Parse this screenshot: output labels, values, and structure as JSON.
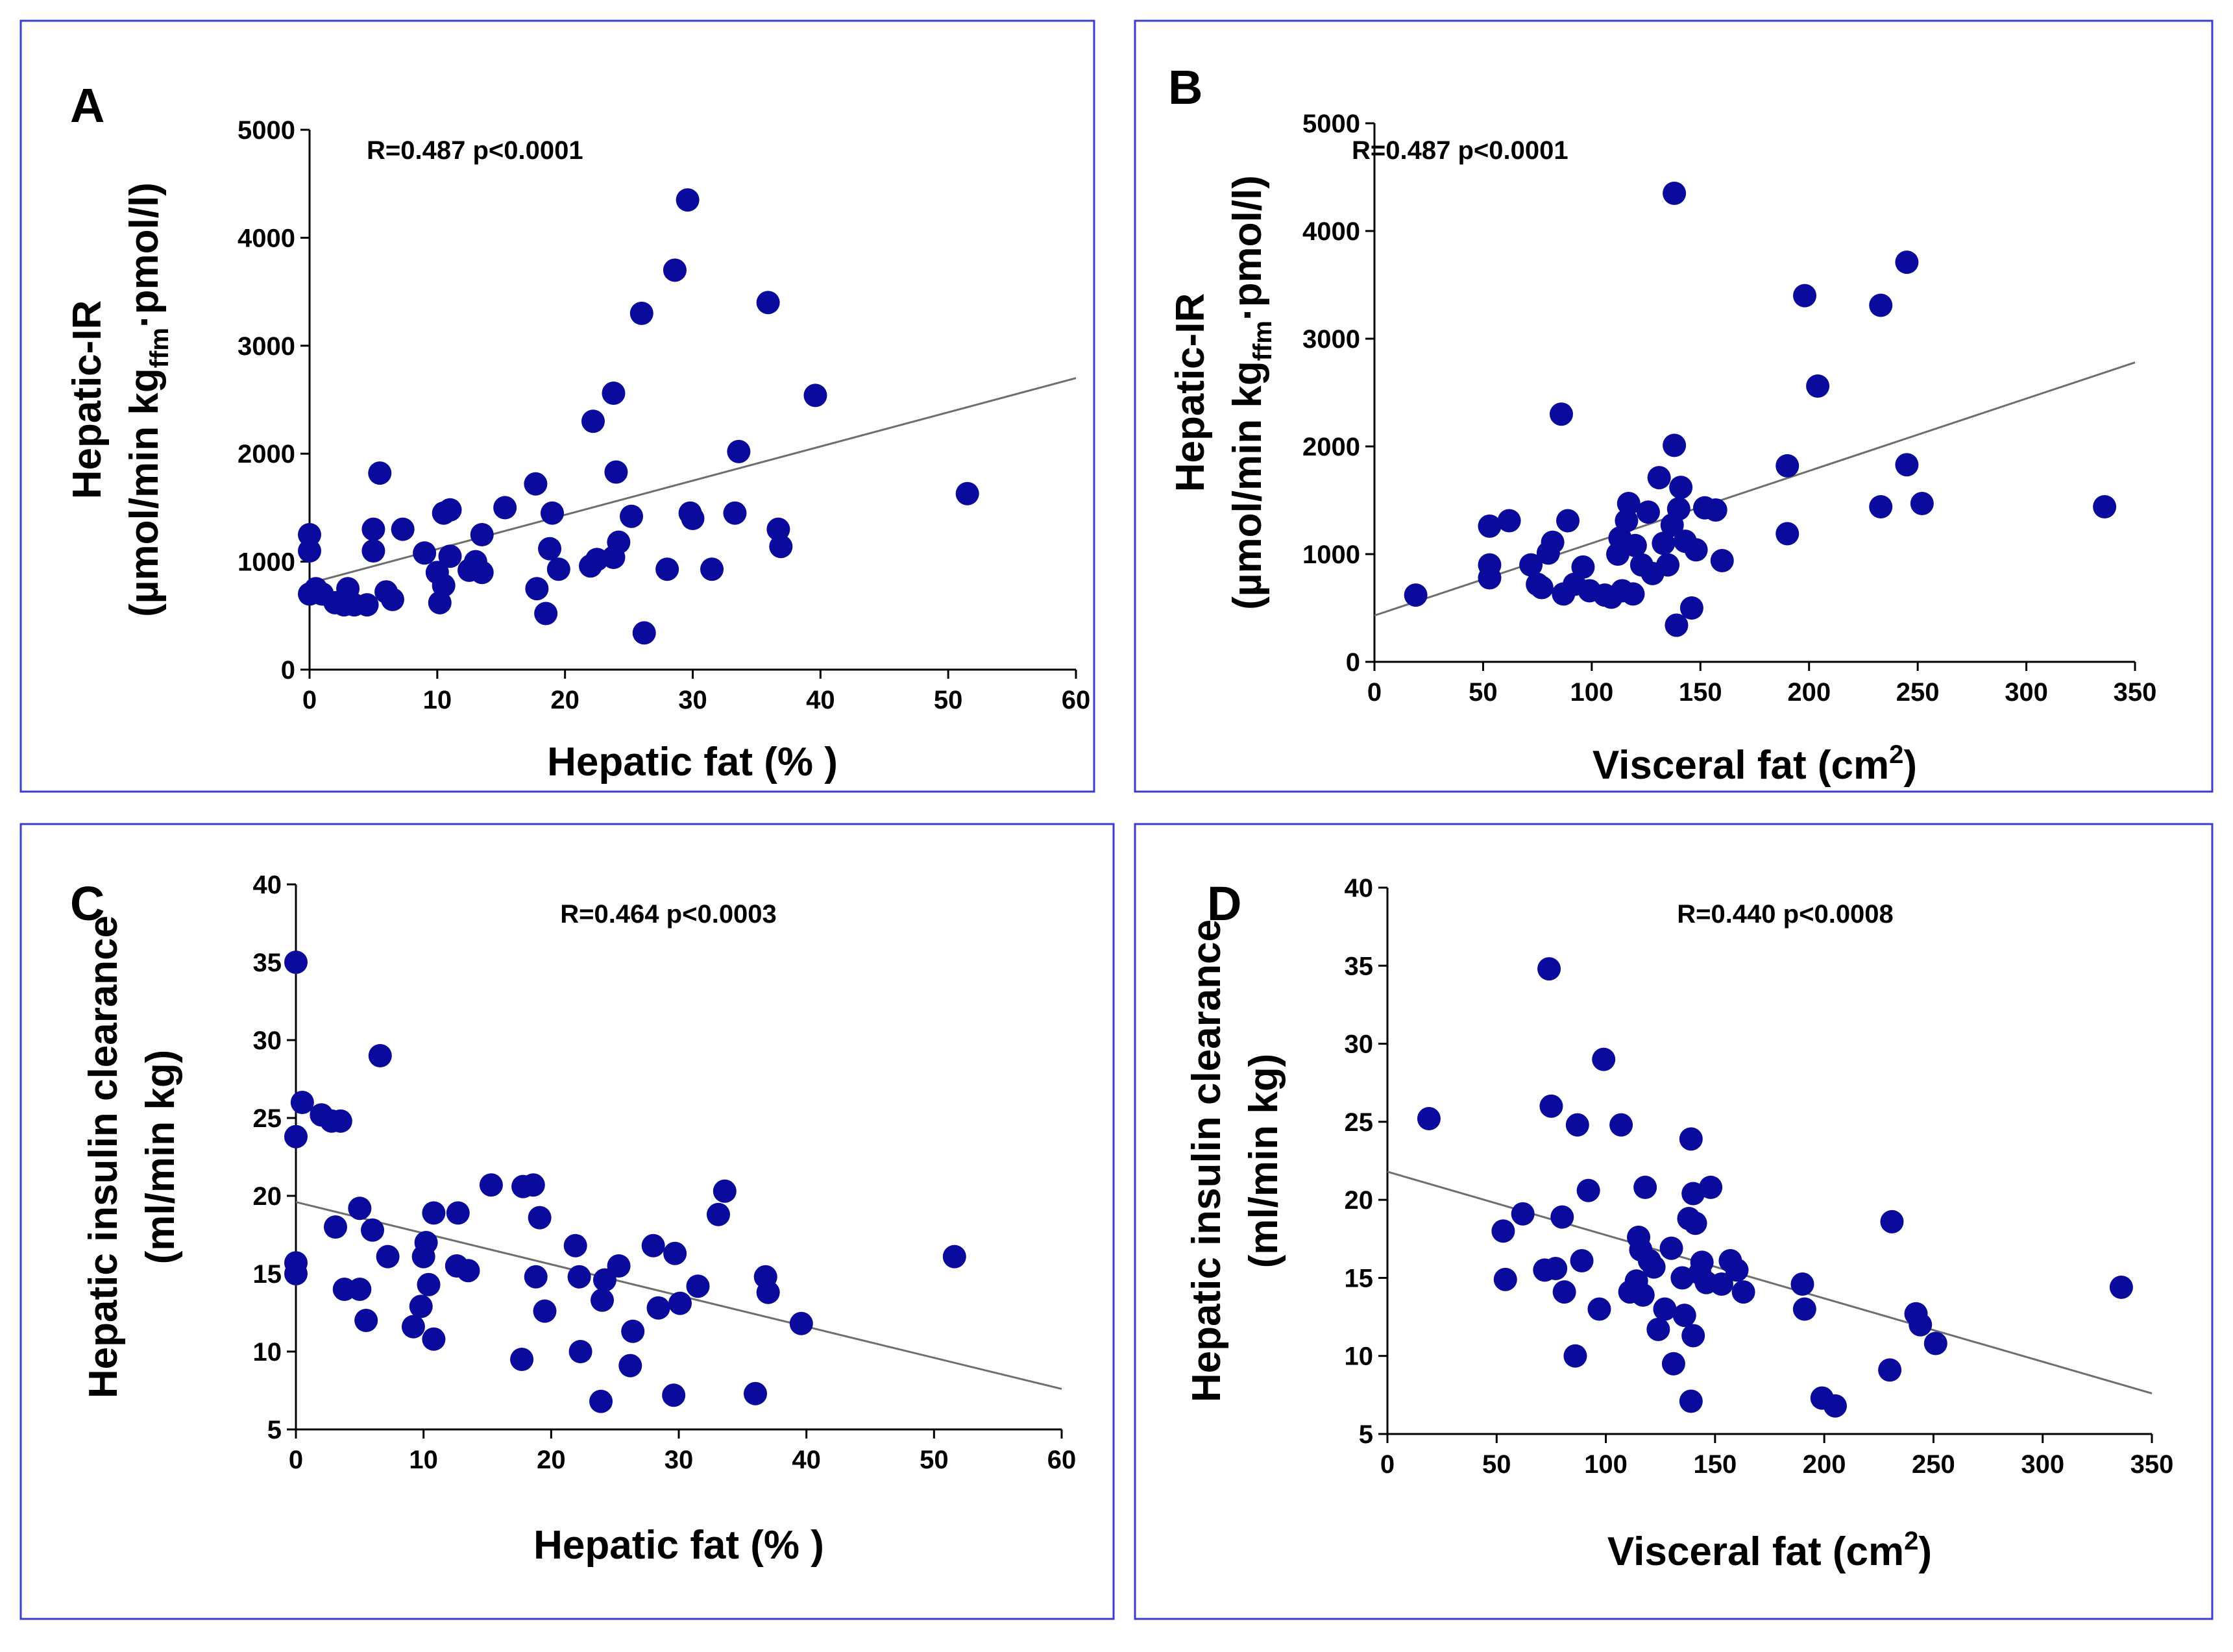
{
  "colors": {
    "panel_border": "#3c3ccc",
    "marker": "#0a0a9c",
    "regression_line": "#6e6e6e",
    "axis": "#000000",
    "text": "#000000"
  },
  "chart_data": [
    {
      "panel": "A",
      "type": "scatter",
      "stat_label": "R=0.487 p<0.0001",
      "xlabel": "Hepatic fat (% )",
      "ylabel_line1": "Hepatic-IR",
      "ylabel_line2": {
        "pre": "(µmol/min kg",
        "sub": "ffm",
        "post": "·pmol/l)"
      },
      "xlim": [
        0,
        60
      ],
      "ylim": [
        0,
        5000
      ],
      "xticks": [
        "0",
        "10",
        "20",
        "30",
        "40",
        "50",
        "60"
      ],
      "yticks": [
        "0",
        "1000",
        "2000",
        "3000",
        "4000",
        "5000"
      ],
      "regression": {
        "x": [
          0,
          60
        ],
        "y": [
          800,
          2700
        ]
      },
      "points": [
        {
          "x": 0.0,
          "y": 1250
        },
        {
          "x": 0.0,
          "y": 1100
        },
        {
          "x": 0.0,
          "y": 700
        },
        {
          "x": 0.5,
          "y": 750
        },
        {
          "x": 1.0,
          "y": 700
        },
        {
          "x": 2.0,
          "y": 620
        },
        {
          "x": 2.7,
          "y": 600
        },
        {
          "x": 3.0,
          "y": 750
        },
        {
          "x": 3.5,
          "y": 600
        },
        {
          "x": 4.5,
          "y": 600
        },
        {
          "x": 5.0,
          "y": 1100
        },
        {
          "x": 5.0,
          "y": 1300
        },
        {
          "x": 5.5,
          "y": 1820
        },
        {
          "x": 6.0,
          "y": 720
        },
        {
          "x": 6.5,
          "y": 650
        },
        {
          "x": 7.3,
          "y": 1300
        },
        {
          "x": 9.0,
          "y": 1080
        },
        {
          "x": 10.0,
          "y": 900
        },
        {
          "x": 10.2,
          "y": 620
        },
        {
          "x": 10.5,
          "y": 780
        },
        {
          "x": 10.5,
          "y": 1450
        },
        {
          "x": 11.0,
          "y": 1050
        },
        {
          "x": 11.0,
          "y": 1480
        },
        {
          "x": 12.5,
          "y": 920
        },
        {
          "x": 13.0,
          "y": 1000
        },
        {
          "x": 13.5,
          "y": 1250
        },
        {
          "x": 13.5,
          "y": 900
        },
        {
          "x": 15.3,
          "y": 1500
        },
        {
          "x": 17.7,
          "y": 1720
        },
        {
          "x": 17.8,
          "y": 750
        },
        {
          "x": 18.5,
          "y": 520
        },
        {
          "x": 18.8,
          "y": 1120
        },
        {
          "x": 19.0,
          "y": 1450
        },
        {
          "x": 19.5,
          "y": 930
        },
        {
          "x": 22.0,
          "y": 960
        },
        {
          "x": 22.2,
          "y": 2300
        },
        {
          "x": 22.5,
          "y": 1020
        },
        {
          "x": 23.8,
          "y": 1040
        },
        {
          "x": 23.8,
          "y": 2560
        },
        {
          "x": 24.0,
          "y": 1830
        },
        {
          "x": 24.2,
          "y": 1180
        },
        {
          "x": 25.2,
          "y": 1420
        },
        {
          "x": 26.0,
          "y": 3300
        },
        {
          "x": 26.2,
          "y": 340
        },
        {
          "x": 28.0,
          "y": 930
        },
        {
          "x": 28.6,
          "y": 3700
        },
        {
          "x": 29.6,
          "y": 4350
        },
        {
          "x": 29.8,
          "y": 1450
        },
        {
          "x": 30.0,
          "y": 1400
        },
        {
          "x": 31.5,
          "y": 930
        },
        {
          "x": 33.3,
          "y": 1450
        },
        {
          "x": 33.6,
          "y": 2020
        },
        {
          "x": 35.9,
          "y": 3400
        },
        {
          "x": 36.7,
          "y": 1300
        },
        {
          "x": 36.9,
          "y": 1140
        },
        {
          "x": 39.6,
          "y": 2540
        },
        {
          "x": 51.5,
          "y": 1630
        }
      ]
    },
    {
      "panel": "B",
      "type": "scatter",
      "stat_label": "R=0.487 p<0.0001",
      "xlabel": "Visceral fat (cm",
      "xlabel_sup": "2",
      "xlabel_end": ")",
      "ylabel_line1": "Hepatic-IR",
      "ylabel_line2": {
        "pre": "(µmol/min kg",
        "sub": "ffm",
        "post": "·pmol/l)"
      },
      "xlim": [
        0,
        350
      ],
      "ylim": [
        0,
        5000
      ],
      "xticks": [
        "0",
        "50",
        "100",
        "150",
        "200",
        "250",
        "300",
        "350"
      ],
      "yticks": [
        "0",
        "1000",
        "2000",
        "3000",
        "4000",
        "5000"
      ],
      "regression": {
        "x": [
          0,
          350
        ],
        "y": [
          430,
          2780
        ]
      },
      "points": [
        {
          "x": 19,
          "y": 620
        },
        {
          "x": 53,
          "y": 1260
        },
        {
          "x": 53,
          "y": 900
        },
        {
          "x": 53,
          "y": 780
        },
        {
          "x": 62,
          "y": 1310
        },
        {
          "x": 72,
          "y": 900
        },
        {
          "x": 75,
          "y": 720
        },
        {
          "x": 77,
          "y": 690
        },
        {
          "x": 80,
          "y": 1010
        },
        {
          "x": 82,
          "y": 1110
        },
        {
          "x": 86,
          "y": 2300
        },
        {
          "x": 87,
          "y": 630
        },
        {
          "x": 89,
          "y": 1310
        },
        {
          "x": 92,
          "y": 720
        },
        {
          "x": 96,
          "y": 880
        },
        {
          "x": 99,
          "y": 660
        },
        {
          "x": 106,
          "y": 620
        },
        {
          "x": 109,
          "y": 600
        },
        {
          "x": 112,
          "y": 1000
        },
        {
          "x": 113,
          "y": 1150
        },
        {
          "x": 114,
          "y": 660
        },
        {
          "x": 116,
          "y": 1310
        },
        {
          "x": 117,
          "y": 1470
        },
        {
          "x": 119,
          "y": 630
        },
        {
          "x": 120,
          "y": 1080
        },
        {
          "x": 123,
          "y": 900
        },
        {
          "x": 126,
          "y": 1390
        },
        {
          "x": 128,
          "y": 820
        },
        {
          "x": 131,
          "y": 1710
        },
        {
          "x": 133,
          "y": 1100
        },
        {
          "x": 135,
          "y": 900
        },
        {
          "x": 137,
          "y": 1270
        },
        {
          "x": 138,
          "y": 2010
        },
        {
          "x": 138,
          "y": 4350
        },
        {
          "x": 139,
          "y": 340
        },
        {
          "x": 140,
          "y": 1420
        },
        {
          "x": 141,
          "y": 1620
        },
        {
          "x": 143,
          "y": 1120
        },
        {
          "x": 146,
          "y": 500
        },
        {
          "x": 148,
          "y": 1040
        },
        {
          "x": 152,
          "y": 1430
        },
        {
          "x": 157,
          "y": 1410
        },
        {
          "x": 160,
          "y": 940
        },
        {
          "x": 190,
          "y": 1820
        },
        {
          "x": 190,
          "y": 1190
        },
        {
          "x": 198,
          "y": 3400
        },
        {
          "x": 204,
          "y": 2560
        },
        {
          "x": 233,
          "y": 3310
        },
        {
          "x": 233,
          "y": 1440
        },
        {
          "x": 245,
          "y": 3710
        },
        {
          "x": 245,
          "y": 1830
        },
        {
          "x": 252,
          "y": 1470
        },
        {
          "x": 336,
          "y": 1440
        }
      ]
    },
    {
      "panel": "C",
      "type": "scatter",
      "stat_label": "R=0.464 p<0.0003",
      "xlabel": "Hepatic fat (% )",
      "ylabel_line1": "Hepatic insulin clearance",
      "ylabel_line2_text": "(ml/min kg)",
      "xlim": [
        0,
        60
      ],
      "ylim": [
        5,
        40
      ],
      "xticks": [
        "0",
        "10",
        "20",
        "30",
        "40",
        "50",
        "60"
      ],
      "yticks": [
        "5",
        "10",
        "15",
        "20",
        "25",
        "30",
        "35",
        "40"
      ],
      "regression": {
        "x": [
          0,
          60
        ],
        "y": [
          19.6,
          7.6
        ]
      },
      "points": [
        {
          "x": 0.0,
          "y": 35.0
        },
        {
          "x": 0.0,
          "y": 23.8
        },
        {
          "x": 0.0,
          "y": 15.7
        },
        {
          "x": 0.0,
          "y": 15.0
        },
        {
          "x": 0.5,
          "y": 26.0
        },
        {
          "x": 2.0,
          "y": 25.2
        },
        {
          "x": 2.8,
          "y": 24.8
        },
        {
          "x": 3.1,
          "y": 18.0
        },
        {
          "x": 3.5,
          "y": 24.8
        },
        {
          "x": 3.8,
          "y": 14.0
        },
        {
          "x": 5.0,
          "y": 14.0
        },
        {
          "x": 5.0,
          "y": 19.2
        },
        {
          "x": 5.5,
          "y": 12.0
        },
        {
          "x": 6.0,
          "y": 17.8
        },
        {
          "x": 6.6,
          "y": 29.0
        },
        {
          "x": 7.2,
          "y": 16.1
        },
        {
          "x": 9.2,
          "y": 11.6
        },
        {
          "x": 9.8,
          "y": 12.9
        },
        {
          "x": 10.0,
          "y": 16.1
        },
        {
          "x": 10.2,
          "y": 17.0
        },
        {
          "x": 10.4,
          "y": 14.3
        },
        {
          "x": 10.8,
          "y": 18.9
        },
        {
          "x": 10.8,
          "y": 10.8
        },
        {
          "x": 12.6,
          "y": 15.5
        },
        {
          "x": 12.7,
          "y": 18.9
        },
        {
          "x": 13.5,
          "y": 15.2
        },
        {
          "x": 15.3,
          "y": 20.7
        },
        {
          "x": 17.7,
          "y": 9.5
        },
        {
          "x": 17.8,
          "y": 20.6
        },
        {
          "x": 18.6,
          "y": 20.7
        },
        {
          "x": 18.8,
          "y": 14.8
        },
        {
          "x": 19.1,
          "y": 18.6
        },
        {
          "x": 19.5,
          "y": 12.6
        },
        {
          "x": 21.9,
          "y": 16.8
        },
        {
          "x": 22.2,
          "y": 14.8
        },
        {
          "x": 22.3,
          "y": 10.0
        },
        {
          "x": 23.9,
          "y": 6.8
        },
        {
          "x": 24.0,
          "y": 13.3
        },
        {
          "x": 24.2,
          "y": 14.6
        },
        {
          "x": 25.3,
          "y": 15.5
        },
        {
          "x": 26.2,
          "y": 9.1
        },
        {
          "x": 26.4,
          "y": 11.3
        },
        {
          "x": 28.0,
          "y": 16.8
        },
        {
          "x": 28.4,
          "y": 12.8
        },
        {
          "x": 29.6,
          "y": 7.2
        },
        {
          "x": 29.7,
          "y": 16.3
        },
        {
          "x": 30.1,
          "y": 13.1
        },
        {
          "x": 31.5,
          "y": 14.2
        },
        {
          "x": 33.1,
          "y": 18.8
        },
        {
          "x": 33.6,
          "y": 20.3
        },
        {
          "x": 36.0,
          "y": 7.3
        },
        {
          "x": 36.8,
          "y": 14.8
        },
        {
          "x": 37.0,
          "y": 13.8
        },
        {
          "x": 39.6,
          "y": 11.8
        },
        {
          "x": 51.6,
          "y": 16.1
        }
      ]
    },
    {
      "panel": "D",
      "type": "scatter",
      "stat_label": "R=0.440 p<0.0008",
      "xlabel": "Visceral fat (cm",
      "xlabel_sup": "2",
      "xlabel_end": ")",
      "ylabel_line1": "Hepatic insulin clearance",
      "ylabel_line2_text": "(ml/min kg)",
      "xlim": [
        0,
        350
      ],
      "ylim": [
        5,
        40
      ],
      "xticks": [
        "0",
        "50",
        "100",
        "150",
        "200",
        "250",
        "300",
        "350"
      ],
      "yticks": [
        "5",
        "10",
        "15",
        "20",
        "25",
        "30",
        "35",
        "40"
      ],
      "regression": {
        "x": [
          0,
          350
        ],
        "y": [
          21.8,
          7.6
        ]
      },
      "points": [
        {
          "x": 19,
          "y": 25.2
        },
        {
          "x": 53,
          "y": 18.0
        },
        {
          "x": 54,
          "y": 14.9
        },
        {
          "x": 62,
          "y": 19.1
        },
        {
          "x": 72,
          "y": 15.5
        },
        {
          "x": 74,
          "y": 34.8
        },
        {
          "x": 75,
          "y": 26.0
        },
        {
          "x": 77,
          "y": 15.6
        },
        {
          "x": 80,
          "y": 18.9
        },
        {
          "x": 81,
          "y": 14.1
        },
        {
          "x": 86,
          "y": 10.0
        },
        {
          "x": 87,
          "y": 24.8
        },
        {
          "x": 89,
          "y": 16.1
        },
        {
          "x": 92,
          "y": 20.6
        },
        {
          "x": 97,
          "y": 13.0
        },
        {
          "x": 99,
          "y": 29.0
        },
        {
          "x": 107,
          "y": 24.8
        },
        {
          "x": 111,
          "y": 14.1
        },
        {
          "x": 114,
          "y": 14.8
        },
        {
          "x": 115,
          "y": 17.6
        },
        {
          "x": 116,
          "y": 16.8
        },
        {
          "x": 117,
          "y": 13.9
        },
        {
          "x": 118,
          "y": 20.8
        },
        {
          "x": 120,
          "y": 16.1
        },
        {
          "x": 122,
          "y": 15.7
        },
        {
          "x": 124,
          "y": 11.7
        },
        {
          "x": 127,
          "y": 13.0
        },
        {
          "x": 130,
          "y": 16.9
        },
        {
          "x": 131,
          "y": 9.5
        },
        {
          "x": 135,
          "y": 15.0
        },
        {
          "x": 136,
          "y": 12.6
        },
        {
          "x": 138,
          "y": 18.8
        },
        {
          "x": 139,
          "y": 23.9
        },
        {
          "x": 139,
          "y": 7.1
        },
        {
          "x": 140,
          "y": 20.4
        },
        {
          "x": 140,
          "y": 11.3
        },
        {
          "x": 141,
          "y": 18.5
        },
        {
          "x": 143,
          "y": 15.3
        },
        {
          "x": 144,
          "y": 16.0
        },
        {
          "x": 146,
          "y": 14.7
        },
        {
          "x": 148,
          "y": 20.8
        },
        {
          "x": 153,
          "y": 14.6
        },
        {
          "x": 157,
          "y": 16.1
        },
        {
          "x": 160,
          "y": 15.5
        },
        {
          "x": 163,
          "y": 14.1
        },
        {
          "x": 190,
          "y": 14.6
        },
        {
          "x": 191,
          "y": 13.0
        },
        {
          "x": 199,
          "y": 7.3
        },
        {
          "x": 205,
          "y": 6.8
        },
        {
          "x": 230,
          "y": 9.1
        },
        {
          "x": 231,
          "y": 18.6
        },
        {
          "x": 242,
          "y": 12.7
        },
        {
          "x": 244,
          "y": 12.0
        },
        {
          "x": 251,
          "y": 10.8
        },
        {
          "x": 336,
          "y": 14.4
        }
      ]
    }
  ]
}
